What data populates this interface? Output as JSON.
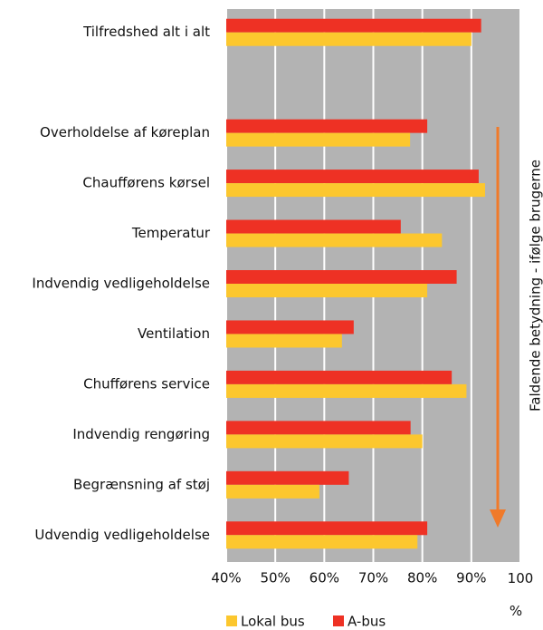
{
  "chart_data": {
    "type": "bar",
    "orientation": "horizontal",
    "categories": [
      "Tilfredshed alt i alt",
      null,
      "Overholdelse af køreplan",
      "Chaufførens kørsel",
      "Temperatur",
      "Indvendig vedligeholdelse",
      "Ventilation",
      "Chufførens service",
      "Indvendig rengøring ",
      "Begrænsning af støj",
      "Udvendig vedligeholdelse"
    ],
    "series": [
      {
        "name": "Lokal bus",
        "color": "#fcc72e",
        "values": [
          90,
          null,
          77.5,
          92.8,
          84,
          81,
          63.6,
          89,
          80,
          59,
          79
        ]
      },
      {
        "name": "A-bus",
        "color": "#ee3124",
        "values": [
          92,
          null,
          81,
          91.5,
          75.6,
          87,
          66,
          86,
          77.6,
          65,
          81
        ]
      }
    ],
    "xlim": [
      40,
      100
    ],
    "xticks": [
      {
        "value": 40,
        "label": "40%"
      },
      {
        "value": 50,
        "label": "50%"
      },
      {
        "value": 60,
        "label": "60%"
      },
      {
        "value": 70,
        "label": "70%"
      },
      {
        "value": 80,
        "label": "80%"
      },
      {
        "value": 90,
        "label": "90%"
      },
      {
        "value": 100,
        "label": "100 %"
      }
    ],
    "grid": true,
    "legend": "bottom",
    "annotation": "Faldende betydning - ifølge brugerne"
  }
}
